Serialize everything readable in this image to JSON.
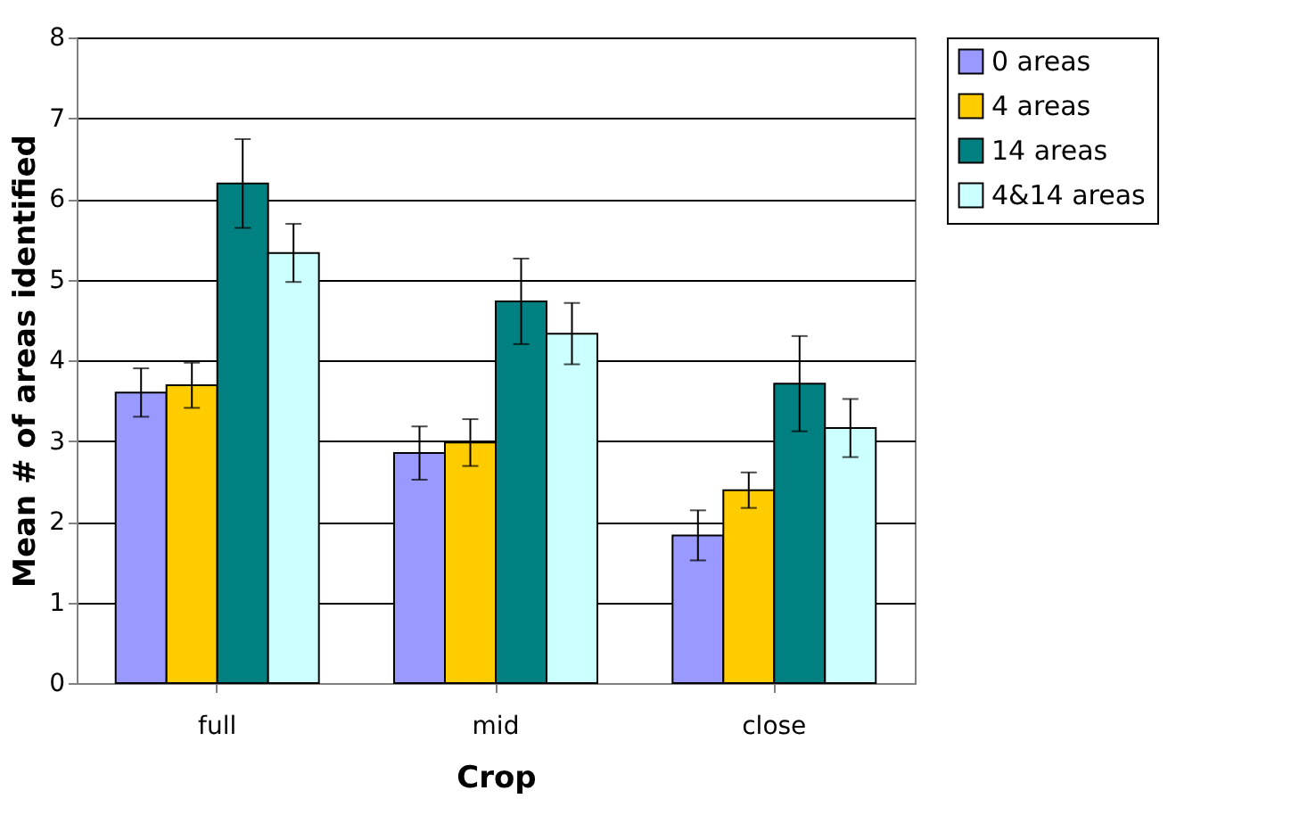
{
  "chart_data": {
    "type": "bar",
    "xlabel": "Crop",
    "ylabel": "Mean # of areas identified",
    "categories": [
      "full",
      "mid",
      "close"
    ],
    "series": [
      {
        "name": "0 areas",
        "color": "#9999ff",
        "values": [
          3.6,
          2.85,
          1.83
        ],
        "errors": [
          0.3,
          0.33,
          0.31
        ]
      },
      {
        "name": "4 areas",
        "color": "#ffcc00",
        "values": [
          3.69,
          2.98,
          2.39
        ],
        "errors": [
          0.28,
          0.29,
          0.22
        ]
      },
      {
        "name": "14 areas",
        "color": "#008080",
        "values": [
          6.19,
          4.73,
          3.71
        ],
        "errors": [
          0.55,
          0.53,
          0.59
        ]
      },
      {
        "name": "4&14 areas",
        "color": "#ccffff",
        "values": [
          5.33,
          4.33,
          3.16
        ],
        "errors": [
          0.36,
          0.38,
          0.36
        ]
      }
    ],
    "ylim": [
      0,
      8
    ],
    "yticks": [
      0,
      1,
      2,
      3,
      4,
      5,
      6,
      7,
      8
    ],
    "grid": "y",
    "legend": "right"
  }
}
